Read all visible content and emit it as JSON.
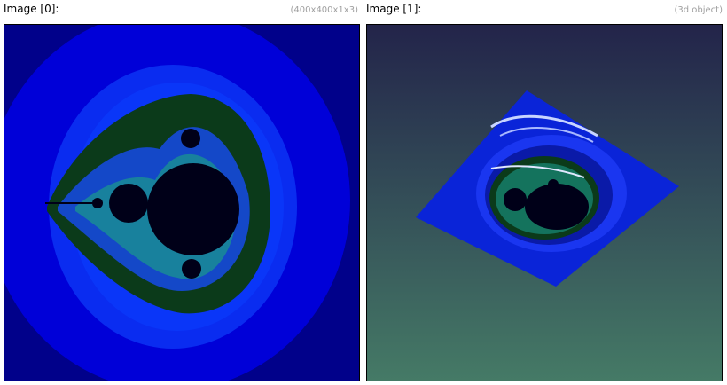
{
  "panels": [
    {
      "title": "Image [0]:",
      "meta": "(400x400x1x3)",
      "image": "mandelbrot-2d-render"
    },
    {
      "title": "Image [1]:",
      "meta": "(3d object)",
      "image": "mandelbrot-3d-surface-render"
    }
  ],
  "colors": {
    "mandel_outer": "#01018a",
    "mandel_blue1": "#0000e0",
    "mandel_blue2": "#0a2cf0",
    "mandel_green": "#0b3a1a",
    "mandel_set": "#000018",
    "bg_top": "#23244a",
    "bg_bottom": "#457a66"
  }
}
